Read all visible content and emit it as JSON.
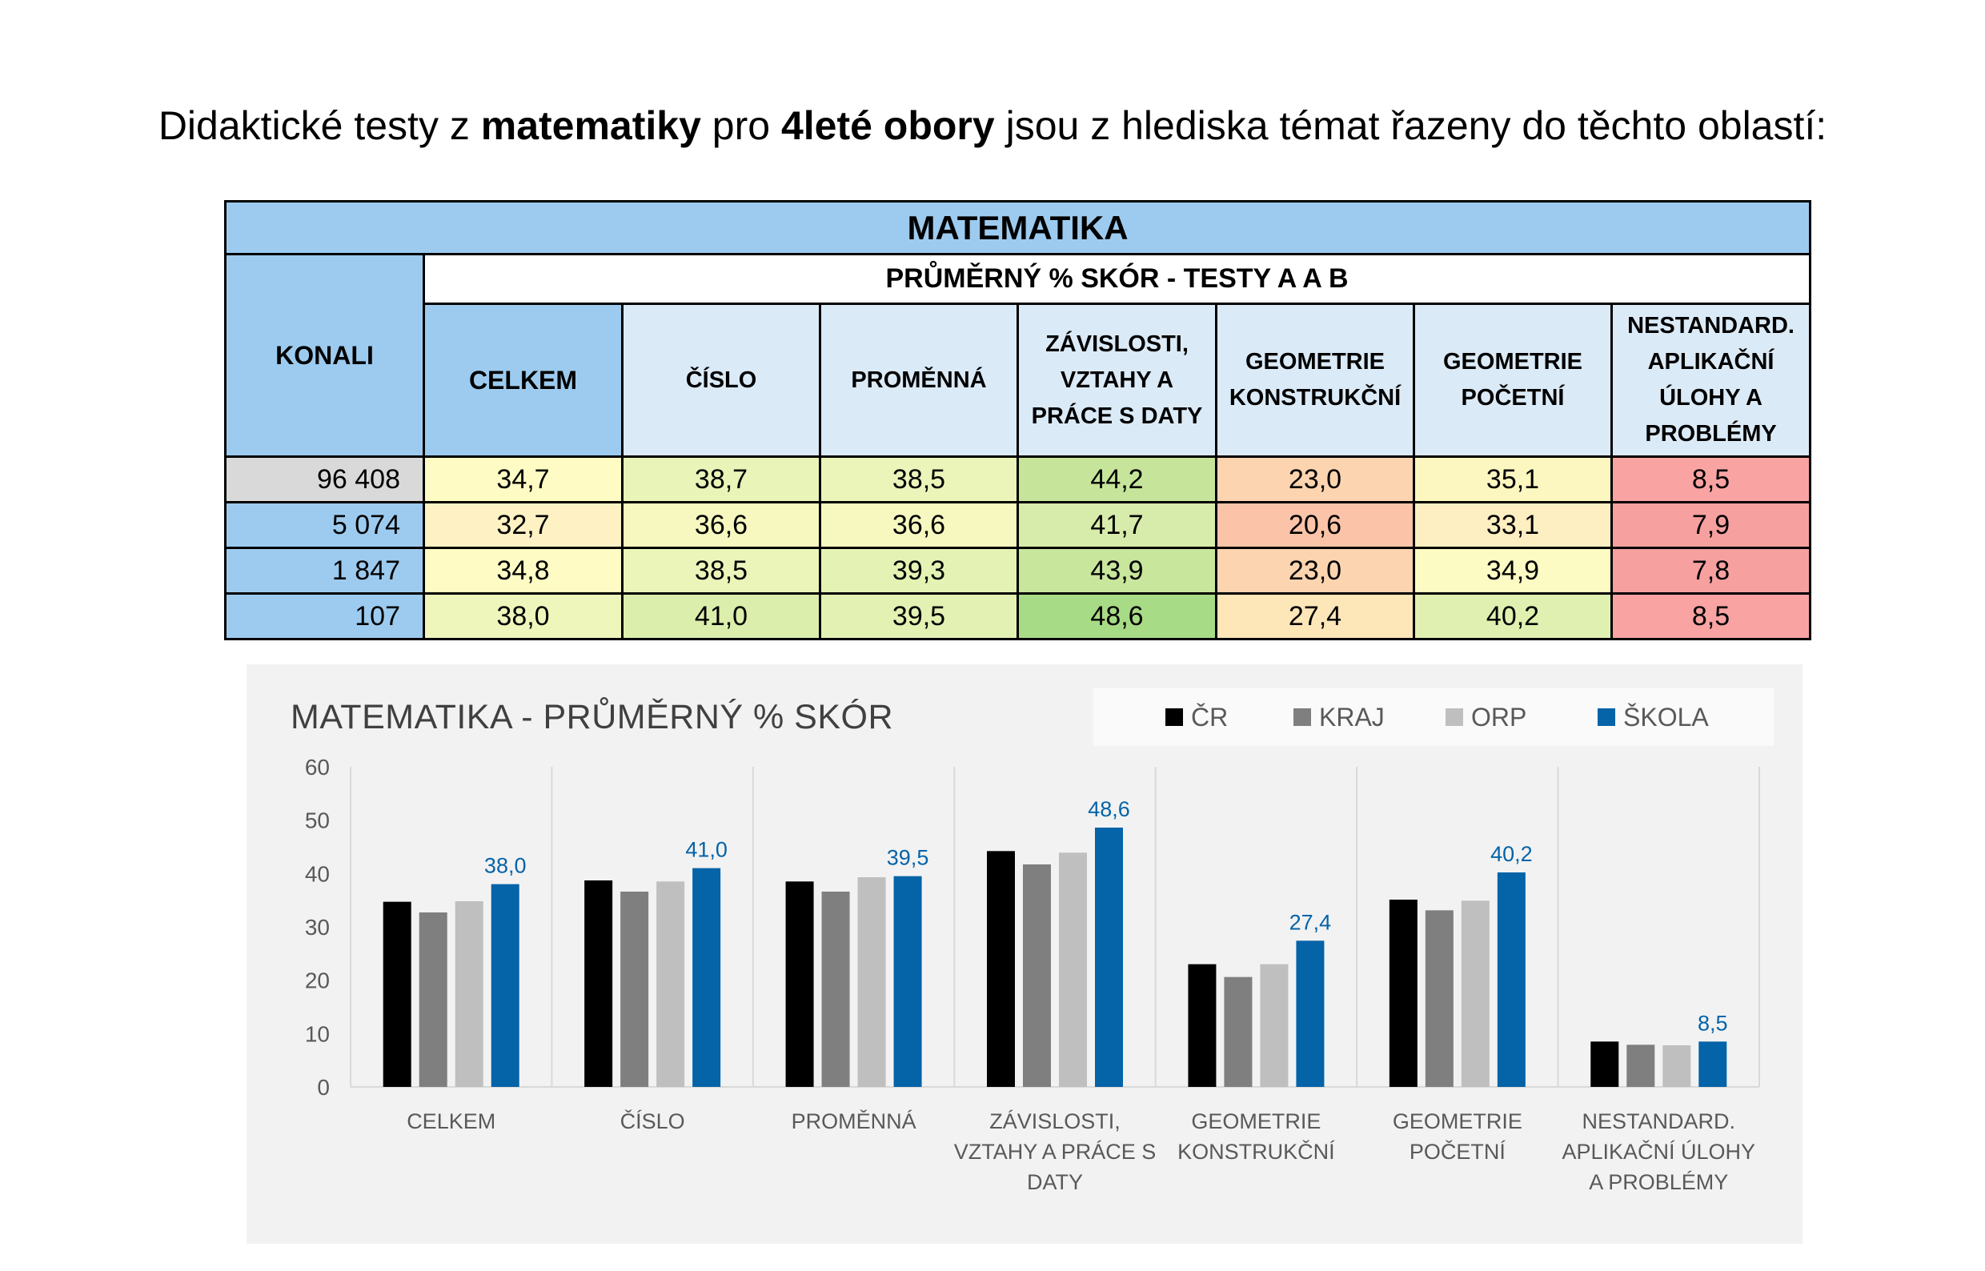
{
  "intro": {
    "part1": "Didaktické testy z ",
    "bold1": "matematiky",
    "part2": " pro ",
    "bold2": "4leté obory",
    "part3": " jsou z hlediska témat řazeny do těchto oblastí:"
  },
  "table": {
    "title": "MATEMATIKA",
    "konali_label": "KONALI",
    "subheader": "PRŮMĚRNÝ % SKÓR - TESTY A A B",
    "columns": [
      [
        "CELKEM"
      ],
      [
        "ČÍSLO"
      ],
      [
        "PROMĚNNÁ"
      ],
      [
        "ZÁVISLOSTI,",
        "VZTAHY A",
        "PRÁCE S DATY"
      ],
      [
        "GEOMETRIE",
        "KONSTRUKČNÍ"
      ],
      [
        "GEOMETRIE",
        "POČETNÍ"
      ],
      [
        "NESTANDARD.",
        "APLIKAČNÍ",
        "ÚLOHY A",
        "PROBLÉMY"
      ]
    ],
    "rows": [
      {
        "konali": "96 408",
        "konali_bg": "#d9d9d9",
        "values": [
          "34,7",
          "38,7",
          "38,5",
          "44,2",
          "23,0",
          "35,1",
          "8,5"
        ],
        "colors": [
          "#fefcc4",
          "#e8f4b8",
          "#ebf5ba",
          "#c6e59a",
          "#fdd4b0",
          "#fcf6c0",
          "#f9a3a3"
        ]
      },
      {
        "konali": "5 074",
        "konali_bg": "#9dcbef",
        "values": [
          "32,7",
          "36,6",
          "36,6",
          "41,7",
          "20,6",
          "33,1",
          "7,9"
        ],
        "colors": [
          "#fef2c4",
          "#f6f8bf",
          "#f6f8bf",
          "#d7ecaa",
          "#fbc4a8",
          "#fdefc2",
          "#f7a0a0"
        ]
      },
      {
        "konali": "1 847",
        "konali_bg": "#9dcbef",
        "values": [
          "34,8",
          "38,5",
          "39,3",
          "43,9",
          "23,0",
          "34,9",
          "7,8"
        ],
        "colors": [
          "#fefcc4",
          "#ebf5ba",
          "#e4f2b4",
          "#c8e69c",
          "#fdd4b0",
          "#fdfbc4",
          "#f7a0a0"
        ]
      },
      {
        "konali": "107",
        "konali_bg": "#9dcbef",
        "values": [
          "38,0",
          "41,0",
          "39,5",
          "48,6",
          "27,4",
          "40,2",
          "8,5"
        ],
        "colors": [
          "#eef6bc",
          "#dbeeac",
          "#e3f1b3",
          "#a8db86",
          "#fde6b8",
          "#e0f0b0",
          "#f9a3a3"
        ]
      }
    ]
  },
  "chart_data": {
    "type": "bar",
    "title": "MATEMATIKA - PRŮMĚRNÝ % SKÓR",
    "ylim": [
      0,
      60
    ],
    "yticks": [
      0,
      10,
      20,
      30,
      40,
      50,
      60
    ],
    "grid": "vertical separators between categories",
    "legend_position": "top-right",
    "categories": [
      [
        "CELKEM"
      ],
      [
        "ČÍSLO"
      ],
      [
        "PROMĚNNÁ"
      ],
      [
        "ZÁVISLOSTI,",
        "VZTAHY A PRÁCE S",
        "DATY"
      ],
      [
        "GEOMETRIE",
        "KONSTRUKČNÍ"
      ],
      [
        "GEOMETRIE",
        "POČETNÍ"
      ],
      [
        "NESTANDARD.",
        "APLIKAČNÍ ÚLOHY",
        "A PROBLÉMY"
      ]
    ],
    "series": [
      {
        "name": "ČR",
        "color": "#000000",
        "values": [
          34.7,
          38.7,
          38.5,
          44.2,
          23.0,
          35.1,
          8.5
        ]
      },
      {
        "name": "KRAJ",
        "color": "#7f7f7f",
        "values": [
          32.7,
          36.6,
          36.6,
          41.7,
          20.6,
          33.1,
          7.9
        ]
      },
      {
        "name": "ORP",
        "color": "#bfbfbf",
        "values": [
          34.8,
          38.5,
          39.3,
          43.9,
          23.0,
          34.9,
          7.8
        ]
      },
      {
        "name": "ŠKOLA",
        "color": "#0563a8",
        "values": [
          38.0,
          41.0,
          39.5,
          48.6,
          27.4,
          40.2,
          8.5
        ]
      }
    ],
    "data_labels": {
      "series": "ŠKOLA",
      "values": [
        "38,0",
        "41,0",
        "39,5",
        "48,6",
        "27,4",
        "40,2",
        "8,5"
      ],
      "color": "#0563a8"
    }
  }
}
